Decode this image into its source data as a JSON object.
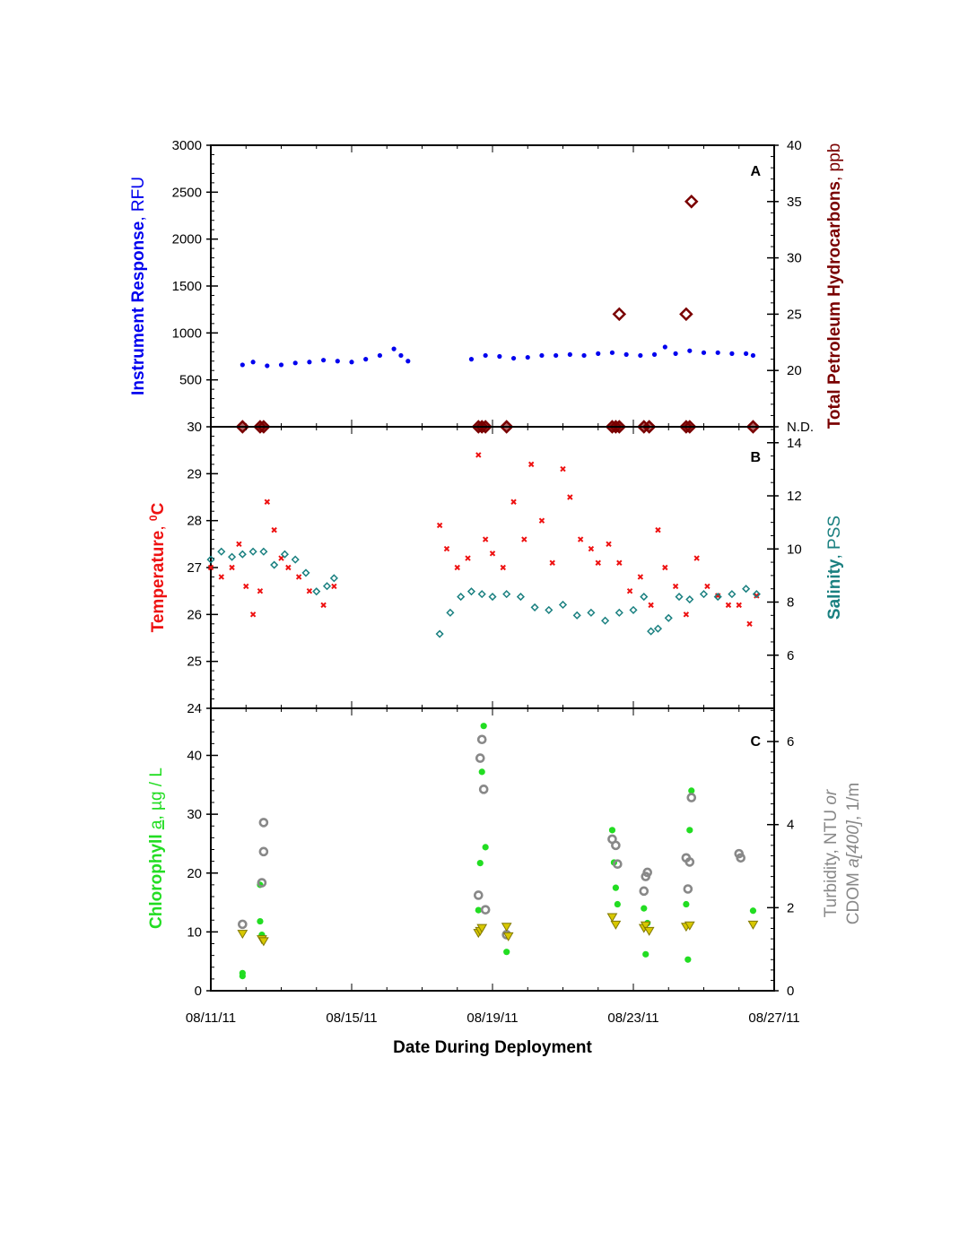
{
  "x_axis": {
    "title": "Date During Deployment",
    "ticks": [
      "08/11/11",
      "08/15/11",
      "08/19/11",
      "08/23/11",
      "08/27/11"
    ],
    "tick_days": [
      0,
      4,
      8,
      12,
      16
    ],
    "range_days": [
      0,
      16
    ]
  },
  "colors": {
    "rfu": "#0000ee",
    "tph": "#7a0000",
    "temperature": "#ee1111",
    "salinity": "#1a8080",
    "chlorophyll": "#22dd22",
    "turbidity": "#888888",
    "cdom": "#d8c800"
  },
  "chart_data": [
    {
      "panel": "A",
      "type": "scatter",
      "y_left": {
        "title_parts": [
          "Instrument Response",
          ", RFU"
        ],
        "range": [
          30,
          3000
        ],
        "ticks": [
          "30",
          "500",
          "1000",
          "1500",
          "2000",
          "2500",
          "3000"
        ]
      },
      "y_right": {
        "title_parts": [
          "Total Petroleum Hydrocarbons",
          ", ppb"
        ],
        "range": [
          15,
          40
        ],
        "ticks": [
          "N.D.",
          "20",
          "25",
          "30",
          "35",
          "40"
        ]
      },
      "series": [
        {
          "axis": "left",
          "marker": "dot",
          "note": "continuous fluorometer record, gap 08/16.4 - 08/18.2",
          "x_days": [
            0.9,
            1.2,
            1.6,
            2.0,
            2.4,
            2.8,
            3.2,
            3.6,
            4.0,
            4.4,
            4.8,
            5.2,
            5.4,
            5.6,
            7.4,
            7.8,
            8.2,
            8.6,
            9.0,
            9.4,
            9.8,
            10.2,
            10.6,
            11.0,
            11.4,
            11.8,
            12.2,
            12.6,
            12.9,
            13.2,
            13.6,
            14.0,
            14.4,
            14.8,
            15.2,
            15.4
          ],
          "values": [
            660,
            690,
            650,
            660,
            680,
            690,
            710,
            700,
            690,
            720,
            760,
            830,
            760,
            700,
            720,
            760,
            750,
            730,
            740,
            760,
            760,
            770,
            760,
            780,
            790,
            770,
            760,
            770,
            850,
            780,
            810,
            790,
            790,
            780,
            780,
            760
          ]
        },
        {
          "axis": "right",
          "marker": "diamond",
          "note": "TPH samples above detection",
          "x_days": [
            11.6,
            13.5,
            13.65
          ],
          "values": [
            25,
            25,
            35
          ]
        },
        {
          "axis": "right",
          "marker": "diamond",
          "note": "TPH samples not detected (N.D.)",
          "x_days": [
            0.9,
            1.4,
            1.5,
            7.6,
            7.7,
            7.8,
            8.4,
            11.4,
            11.5,
            11.6,
            12.3,
            12.45,
            13.5,
            13.6,
            15.4
          ],
          "values": [
            "N.D.",
            "N.D.",
            "N.D.",
            "N.D.",
            "N.D.",
            "N.D.",
            "N.D.",
            "N.D.",
            "N.D.",
            "N.D.",
            "N.D.",
            "N.D.",
            "N.D.",
            "N.D.",
            "N.D."
          ]
        }
      ],
      "letter": "A"
    },
    {
      "panel": "B",
      "type": "scatter",
      "y_left": {
        "title_parts": [
          "Temperature",
          ", ",
          "0",
          "C"
        ],
        "range": [
          24,
          30
        ],
        "ticks": [
          "24",
          "25",
          "26",
          "27",
          "28",
          "29"
        ]
      },
      "y_right": {
        "title_parts": [
          "Salinity",
          ", PSS"
        ],
        "range": [
          4,
          14.6
        ],
        "ticks": [
          "6",
          "8",
          "10",
          "12",
          "14"
        ]
      },
      "series": [
        {
          "axis": "left",
          "marker": "x",
          "note": "Temperature",
          "x_days": [
            0.0,
            0.3,
            0.6,
            0.8,
            1.0,
            1.2,
            1.4,
            1.6,
            1.8,
            2.0,
            2.2,
            2.5,
            2.8,
            3.2,
            3.5,
            6.5,
            6.7,
            7.0,
            7.3,
            7.6,
            7.8,
            8.0,
            8.3,
            8.6,
            8.9,
            9.1,
            9.4,
            9.7,
            10.0,
            10.2,
            10.5,
            10.8,
            11.0,
            11.3,
            11.6,
            11.9,
            12.2,
            12.5,
            12.7,
            12.9,
            13.2,
            13.5,
            13.8,
            14.1,
            14.4,
            14.7,
            15.0,
            15.3,
            15.5
          ],
          "values": [
            27.0,
            26.8,
            27.0,
            27.5,
            26.6,
            26.0,
            26.5,
            28.4,
            27.8,
            27.2,
            27.0,
            26.8,
            26.5,
            26.2,
            26.6,
            27.9,
            27.4,
            27.0,
            27.2,
            29.4,
            27.6,
            27.3,
            27.0,
            28.4,
            27.6,
            29.2,
            28.0,
            27.1,
            29.1,
            28.5,
            27.6,
            27.4,
            27.1,
            27.5,
            27.1,
            26.5,
            26.8,
            26.2,
            27.8,
            27.0,
            26.6,
            26.0,
            27.2,
            26.6,
            26.4,
            26.2,
            26.2,
            25.8,
            26.4
          ]
        },
        {
          "axis": "right",
          "marker": "diamond",
          "note": "Salinity",
          "x_days": [
            0.0,
            0.3,
            0.6,
            0.9,
            1.2,
            1.5,
            1.8,
            2.1,
            2.4,
            2.7,
            3.0,
            3.3,
            3.5,
            6.5,
            6.8,
            7.1,
            7.4,
            7.7,
            8.0,
            8.4,
            8.8,
            9.2,
            9.6,
            10.0,
            10.4,
            10.8,
            11.2,
            11.6,
            12.0,
            12.3,
            12.5,
            12.7,
            13.0,
            13.3,
            13.6,
            14.0,
            14.4,
            14.8,
            15.2,
            15.5
          ],
          "values": [
            9.6,
            9.9,
            9.7,
            9.8,
            9.9,
            9.9,
            9.4,
            9.8,
            9.6,
            9.1,
            8.4,
            8.6,
            8.9,
            6.8,
            7.6,
            8.2,
            8.4,
            8.3,
            8.2,
            8.3,
            8.2,
            7.8,
            7.7,
            7.9,
            7.5,
            7.6,
            7.3,
            7.6,
            7.7,
            8.2,
            6.9,
            7.0,
            7.4,
            8.2,
            8.1,
            8.3,
            8.2,
            8.3,
            8.5,
            8.3
          ]
        }
      ],
      "letter": "B"
    },
    {
      "panel": "C",
      "type": "scatter",
      "y_left": {
        "title_parts": [
          "Chlorophyll ",
          "a",
          ", µg / L"
        ],
        "range": [
          0,
          48
        ],
        "ticks": [
          "0",
          "10",
          "20",
          "30",
          "40"
        ]
      },
      "y_right": {
        "title_parts": [
          "Turbidity",
          ", NTU ",
          "or",
          "CDOM ",
          "a[400]",
          ", 1/m"
        ],
        "range": [
          0,
          6.8
        ],
        "ticks": [
          "0",
          "2",
          "4",
          "6"
        ]
      },
      "series": [
        {
          "axis": "left",
          "marker": "dot",
          "note": "Chlorophyll a",
          "x_days": [
            0.9,
            0.9,
            1.4,
            1.4,
            1.45,
            7.6,
            7.65,
            7.7,
            7.75,
            7.8,
            8.4,
            11.4,
            11.45,
            11.5,
            11.55,
            12.3,
            12.35,
            12.4,
            13.5,
            13.55,
            13.6,
            13.65,
            15.4
          ],
          "values": [
            3,
            2.5,
            18,
            11.8,
            9.5,
            13.7,
            21.7,
            37.2,
            45,
            24.4,
            6.6,
            27.3,
            21.8,
            17.5,
            14.7,
            14,
            6.2,
            11.5,
            14.7,
            5.3,
            27.3,
            34,
            13.6
          ]
        },
        {
          "axis": "right",
          "marker": "ring",
          "note": "Turbidity",
          "x_days": [
            0.9,
            1.45,
            1.5,
            1.5,
            7.6,
            7.65,
            7.7,
            7.75,
            7.8,
            8.4,
            11.4,
            11.5,
            11.55,
            12.3,
            12.35,
            12.4,
            13.5,
            13.55,
            13.6,
            13.65,
            15.0,
            15.05
          ],
          "values": [
            1.6,
            2.6,
            3.35,
            4.05,
            2.3,
            5.6,
            6.05,
            4.85,
            1.95,
            1.35,
            3.65,
            3.5,
            3.05,
            2.4,
            2.75,
            2.85,
            3.2,
            2.45,
            3.1,
            4.65,
            3.3,
            3.2
          ]
        },
        {
          "axis": "right",
          "marker": "triangle-down",
          "note": "CDOM a[400]",
          "x_days": [
            0.9,
            1.45,
            1.5,
            7.6,
            7.65,
            7.7,
            8.4,
            8.45,
            11.4,
            11.5,
            12.3,
            12.35,
            12.45,
            13.5,
            13.6,
            15.4
          ],
          "values": [
            1.38,
            1.25,
            1.2,
            1.4,
            1.45,
            1.52,
            1.55,
            1.32,
            1.78,
            1.6,
            1.52,
            1.58,
            1.45,
            1.55,
            1.58,
            1.6
          ]
        }
      ],
      "letter": "C"
    }
  ]
}
